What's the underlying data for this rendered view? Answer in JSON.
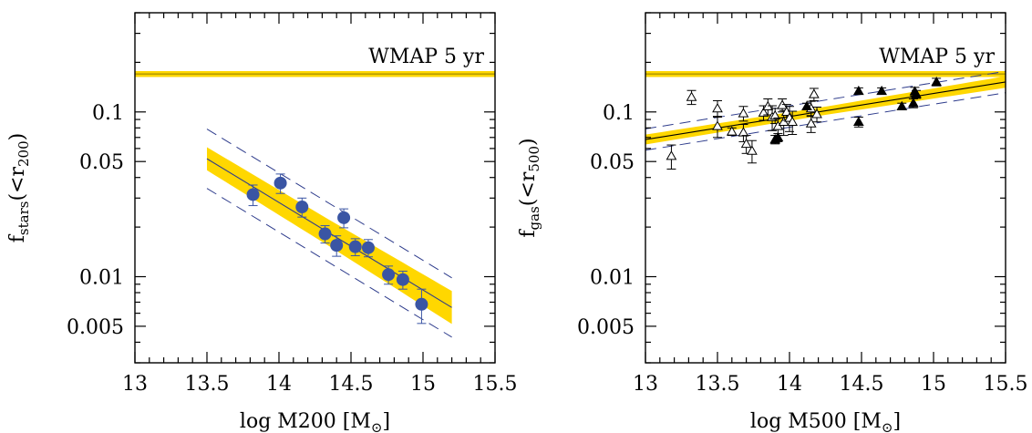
{
  "chart_data": [
    {
      "type": "scatter",
      "xlabel_main": "log M200 [M",
      "xlabel_sub": "⊙",
      "xlabel_close": "]",
      "ylabel_main": "f",
      "ylabel_sub": "stars",
      "ylabel_paren": "(<r",
      "ylabel_paren_sub": "200",
      "ylabel_close": ")",
      "xlim": [
        13.0,
        15.5
      ],
      "ylim": [
        0.003,
        0.4
      ],
      "ylog": true,
      "x_ticks": [
        13,
        13.5,
        14,
        14.5,
        15,
        15.5
      ],
      "x_tick_labels": [
        "13",
        "13.5",
        "14",
        "14.5",
        "15",
        "15.5"
      ],
      "y_ticks": [
        0.005,
        0.01,
        0.05,
        0.1
      ],
      "y_tick_labels": [
        "0.005",
        "0.01",
        "0.05",
        "0.1"
      ],
      "annotation": "WMAP 5 yr",
      "wmap_band": {
        "center": 0.17,
        "low": 0.163,
        "high": 0.177,
        "color": "#ffd700"
      },
      "fit": {
        "x_range": [
          13.5,
          15.2
        ],
        "y_start": 0.052,
        "y_end": 0.0065,
        "color": "#2e3c8c"
      },
      "fit_band_halfwidth_dex": [
        0.07,
        0.08,
        0.1
      ],
      "scatter_dex": 0.18,
      "points_color": "#3a55a4",
      "points": [
        {
          "x": 13.82,
          "y": 0.0315,
          "err": 0.0045
        },
        {
          "x": 14.01,
          "y": 0.037,
          "err": 0.005
        },
        {
          "x": 14.16,
          "y": 0.0265,
          "err": 0.0035
        },
        {
          "x": 14.32,
          "y": 0.0182,
          "err": 0.0022
        },
        {
          "x": 14.4,
          "y": 0.0155,
          "err": 0.0022
        },
        {
          "x": 14.45,
          "y": 0.0228,
          "err": 0.003
        },
        {
          "x": 14.53,
          "y": 0.0152,
          "err": 0.0018
        },
        {
          "x": 14.62,
          "y": 0.015,
          "err": 0.0018
        },
        {
          "x": 14.76,
          "y": 0.0103,
          "err": 0.0013
        },
        {
          "x": 14.86,
          "y": 0.0096,
          "err": 0.0012
        },
        {
          "x": 14.99,
          "y": 0.0068,
          "err": 0.0016
        }
      ]
    },
    {
      "type": "scatter",
      "xlabel_main": "log M500 [M",
      "xlabel_sub": "⊙",
      "xlabel_close": "]",
      "ylabel_main": "f",
      "ylabel_sub": "gas",
      "ylabel_paren": "(<r",
      "ylabel_paren_sub": "500",
      "ylabel_close": ")",
      "xlim": [
        13.0,
        15.5
      ],
      "ylim": [
        0.003,
        0.4
      ],
      "ylog": true,
      "x_ticks": [
        13,
        13.5,
        14,
        14.5,
        15,
        15.5
      ],
      "x_tick_labels": [
        "13",
        "13.5",
        "14",
        "14.5",
        "15",
        "15.5"
      ],
      "y_ticks": [
        0.005,
        0.01,
        0.05,
        0.1
      ],
      "y_tick_labels": [
        "0.005",
        "0.01",
        "0.05",
        "0.1"
      ],
      "annotation": "WMAP 5 yr",
      "wmap_band": {
        "center": 0.17,
        "low": 0.163,
        "high": 0.177,
        "color": "#ffd700"
      },
      "fit": {
        "x_range": [
          13.0,
          15.5
        ],
        "y_start": 0.068,
        "y_end": 0.152,
        "color": "#000000"
      },
      "fit_band_halfwidth_dex": [
        0.03,
        0.025,
        0.035
      ],
      "scatter_dex": 0.065,
      "points_color": "#000000",
      "open_points": [
        {
          "x": 13.18,
          "y": 0.054,
          "err": 0.009
        },
        {
          "x": 13.32,
          "y": 0.123,
          "err": 0.012
        },
        {
          "x": 13.5,
          "y": 0.105,
          "err": 0.012
        },
        {
          "x": 13.5,
          "y": 0.082,
          "err": 0.012
        },
        {
          "x": 13.6,
          "y": 0.076,
          "err": 0.004
        },
        {
          "x": 13.68,
          "y": 0.098,
          "err": 0.01
        },
        {
          "x": 13.68,
          "y": 0.075,
          "err": 0.009
        },
        {
          "x": 13.7,
          "y": 0.064,
          "err": 0.008
        },
        {
          "x": 13.74,
          "y": 0.058,
          "err": 0.009
        },
        {
          "x": 13.82,
          "y": 0.099,
          "err": 0.01
        },
        {
          "x": 13.85,
          "y": 0.108,
          "err": 0.012
        },
        {
          "x": 13.88,
          "y": 0.093,
          "err": 0.016
        },
        {
          "x": 13.9,
          "y": 0.095,
          "err": 0.01
        },
        {
          "x": 13.92,
          "y": 0.082,
          "err": 0.01
        },
        {
          "x": 13.95,
          "y": 0.11,
          "err": 0.01
        },
        {
          "x": 13.96,
          "y": 0.087,
          "err": 0.015
        },
        {
          "x": 13.98,
          "y": 0.1,
          "err": 0.011
        },
        {
          "x": 14.0,
          "y": 0.092,
          "err": 0.016
        },
        {
          "x": 14.02,
          "y": 0.087,
          "err": 0.014
        },
        {
          "x": 14.15,
          "y": 0.105,
          "err": 0.011
        },
        {
          "x": 14.15,
          "y": 0.085,
          "err": 0.01
        },
        {
          "x": 14.17,
          "y": 0.128,
          "err": 0.011
        },
        {
          "x": 14.19,
          "y": 0.097,
          "err": 0.01
        }
      ],
      "filled_points": [
        {
          "x": 13.9,
          "y": 0.068,
          "err": 0.004
        },
        {
          "x": 13.92,
          "y": 0.07,
          "err": 0.004
        },
        {
          "x": 14.12,
          "y": 0.108,
          "err": 0.005
        },
        {
          "x": 14.48,
          "y": 0.087,
          "err": 0.006
        },
        {
          "x": 14.48,
          "y": 0.134,
          "err": 0.006
        },
        {
          "x": 14.64,
          "y": 0.134,
          "err": 0.006
        },
        {
          "x": 14.78,
          "y": 0.108,
          "err": 0.005
        },
        {
          "x": 14.86,
          "y": 0.113,
          "err": 0.007
        },
        {
          "x": 14.87,
          "y": 0.133,
          "err": 0.008
        },
        {
          "x": 14.88,
          "y": 0.128,
          "err": 0.007
        },
        {
          "x": 15.02,
          "y": 0.152,
          "err": 0.008
        }
      ]
    }
  ]
}
